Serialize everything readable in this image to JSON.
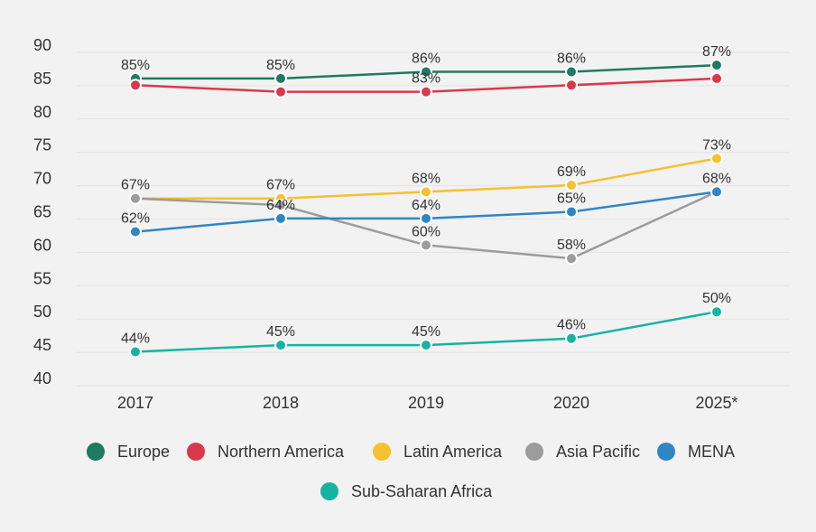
{
  "chart_data": {
    "type": "line",
    "title": "",
    "xlabel": "",
    "ylabel": "",
    "categories": [
      "2017",
      "2018",
      "2019",
      "2020",
      "2025*"
    ],
    "y_ticks": [
      "90",
      "85",
      "80",
      "75",
      "70",
      "65",
      "60",
      "55",
      "50",
      "45",
      "40"
    ],
    "ylim": [
      40,
      90
    ],
    "grid": true,
    "legend_position": "bottom",
    "value_suffix": "%",
    "series": [
      {
        "name": "Europe",
        "color": "#1e7a61",
        "values": [
          85,
          85,
          86,
          86,
          87
        ]
      },
      {
        "name": "Northern America",
        "color": "#d9394a",
        "values": [
          84,
          83,
          83,
          84,
          85
        ],
        "labels": [
          null,
          null,
          "83%",
          null,
          null
        ]
      },
      {
        "name": "Latin America",
        "color": "#f5c12e",
        "values": [
          67,
          67,
          68,
          69,
          73
        ],
        "labels": [
          null,
          "67%",
          "68%",
          "69%",
          "73%"
        ]
      },
      {
        "name": "Asia Pacific",
        "color": "#9c9c9c",
        "values": [
          67,
          66,
          60,
          58,
          68
        ],
        "labels": [
          "67%",
          null,
          "60%",
          "58%",
          null
        ]
      },
      {
        "name": "MENA",
        "color": "#2f86c4",
        "values": [
          62,
          64,
          64,
          65,
          68
        ]
      },
      {
        "name": "Sub-Saharan Africa",
        "color": "#16b3a3",
        "values": [
          44,
          45,
          45,
          46,
          50
        ]
      }
    ]
  }
}
